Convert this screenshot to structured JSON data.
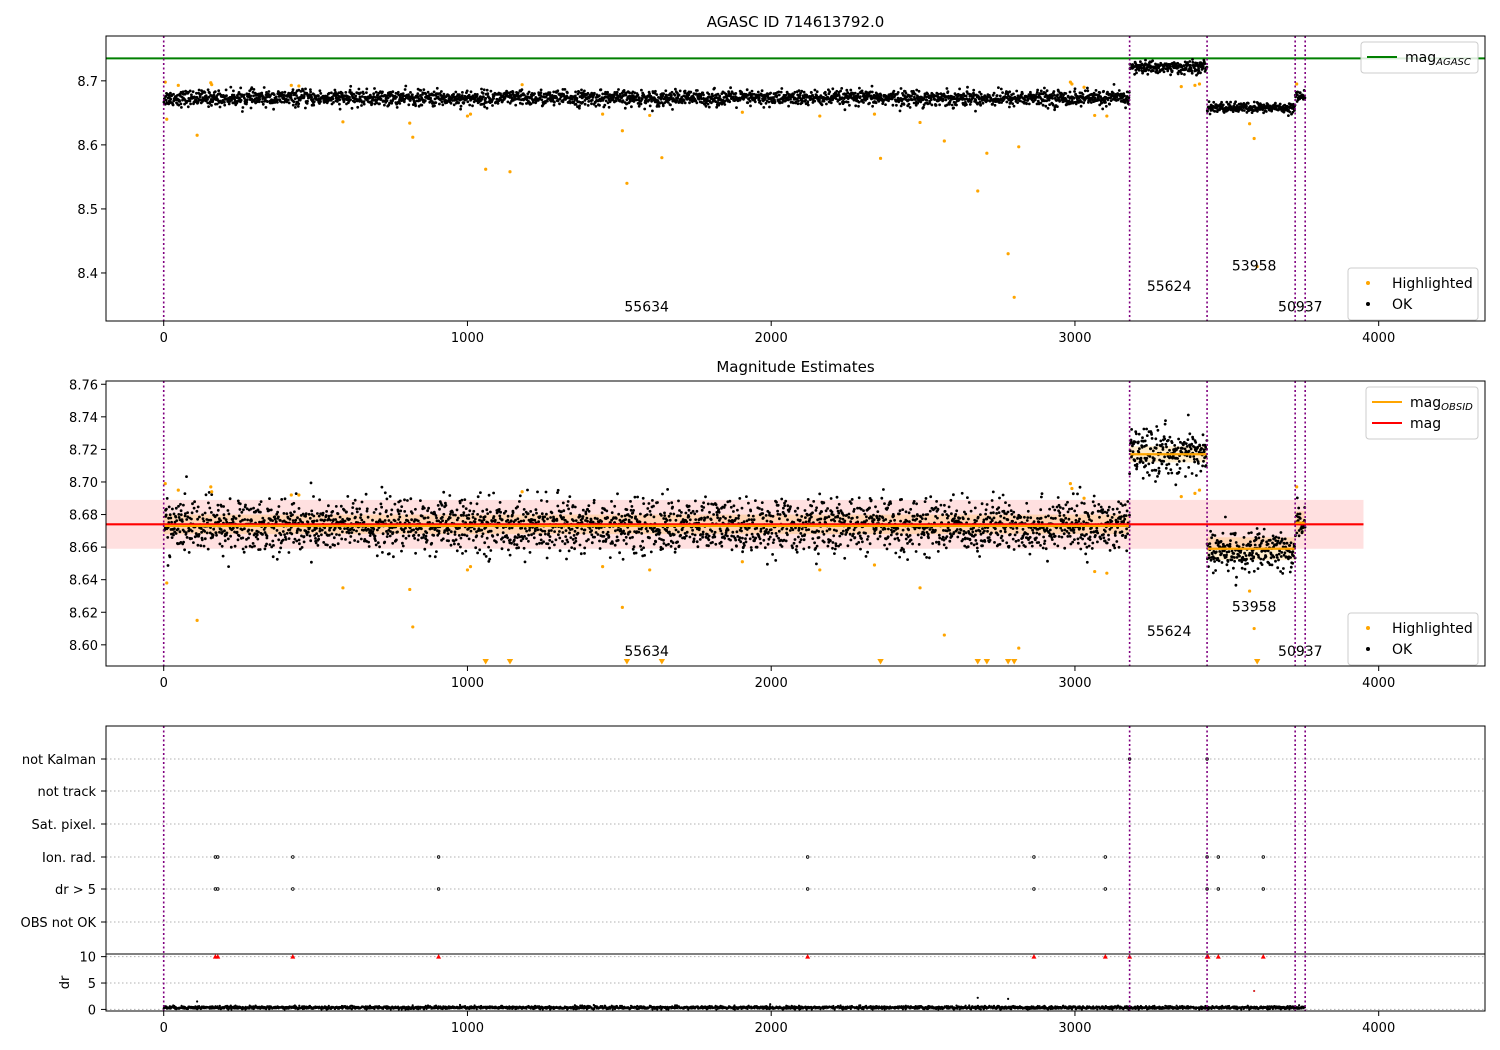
{
  "chart_data": [
    {
      "type": "scatter",
      "title": "AGASC ID 714613792.0",
      "xlim": [
        -190,
        4350
      ],
      "ylim": [
        8.325,
        8.77
      ],
      "x_ticks": [
        0,
        1000,
        2000,
        3000,
        4000
      ],
      "y_ticks": [
        8.4,
        8.5,
        8.6,
        8.7
      ],
      "grid": false,
      "obs_boundaries": [
        0,
        3180,
        3435,
        3725,
        3758
      ],
      "obs_labels": [
        {
          "text": "55634",
          "x": 1590,
          "y": 8.34
        },
        {
          "text": "55624",
          "x": 3310,
          "y": 8.372
        },
        {
          "text": "53958",
          "x": 3590,
          "y": 8.404
        },
        {
          "text": "50937",
          "x": 3742,
          "y": 8.34
        }
      ],
      "reference_lines": [
        {
          "name": "mag",
          "subscript": "AGASC",
          "value": 8.735,
          "x_range": [
            -190,
            4350
          ],
          "color": "#008000"
        }
      ],
      "ok_segments": [
        {
          "x_start": 0,
          "x_end": 3180,
          "center": 8.673,
          "spread": 0.006
        },
        {
          "x_start": 3180,
          "x_end": 3435,
          "center": 8.721,
          "spread": 0.005
        },
        {
          "x_start": 3435,
          "x_end": 3725,
          "center": 8.658,
          "spread": 0.004
        },
        {
          "x_start": 3725,
          "x_end": 3758,
          "center": 8.676,
          "spread": 0.004
        }
      ],
      "highlighted_points": [
        {
          "x": 5,
          "y": 8.698
        },
        {
          "x": 10,
          "y": 8.64
        },
        {
          "x": 48,
          "y": 8.693
        },
        {
          "x": 110,
          "y": 8.615
        },
        {
          "x": 155,
          "y": 8.697
        },
        {
          "x": 158,
          "y": 8.694
        },
        {
          "x": 420,
          "y": 8.693
        },
        {
          "x": 445,
          "y": 8.692
        },
        {
          "x": 590,
          "y": 8.636
        },
        {
          "x": 810,
          "y": 8.634
        },
        {
          "x": 820,
          "y": 8.612
        },
        {
          "x": 1000,
          "y": 8.645
        },
        {
          "x": 1010,
          "y": 8.648
        },
        {
          "x": 1060,
          "y": 8.562
        },
        {
          "x": 1140,
          "y": 8.558
        },
        {
          "x": 1180,
          "y": 8.694
        },
        {
          "x": 1445,
          "y": 8.648
        },
        {
          "x": 1510,
          "y": 8.622
        },
        {
          "x": 1525,
          "y": 8.54
        },
        {
          "x": 1600,
          "y": 8.646
        },
        {
          "x": 1640,
          "y": 8.58
        },
        {
          "x": 1905,
          "y": 8.651
        },
        {
          "x": 2160,
          "y": 8.645
        },
        {
          "x": 2340,
          "y": 8.648
        },
        {
          "x": 2360,
          "y": 8.579
        },
        {
          "x": 2490,
          "y": 8.635
        },
        {
          "x": 2570,
          "y": 8.606
        },
        {
          "x": 2680,
          "y": 8.528
        },
        {
          "x": 2710,
          "y": 8.587
        },
        {
          "x": 2780,
          "y": 8.43
        },
        {
          "x": 2800,
          "y": 8.362
        },
        {
          "x": 2815,
          "y": 8.597
        },
        {
          "x": 2985,
          "y": 8.698
        },
        {
          "x": 2990,
          "y": 8.695
        },
        {
          "x": 3030,
          "y": 8.69
        },
        {
          "x": 3065,
          "y": 8.646
        },
        {
          "x": 3105,
          "y": 8.645
        },
        {
          "x": 3350,
          "y": 8.691
        },
        {
          "x": 3395,
          "y": 8.693
        },
        {
          "x": 3410,
          "y": 8.695
        },
        {
          "x": 3575,
          "y": 8.633
        },
        {
          "x": 3590,
          "y": 8.61
        },
        {
          "x": 3600,
          "y": 8.41
        },
        {
          "x": 3730,
          "y": 8.695
        }
      ],
      "legends": [
        {
          "placement": "top-right",
          "entries": [
            {
              "label": "mag",
              "subscript": "AGASC",
              "kind": "line",
              "color": "#008000"
            }
          ]
        },
        {
          "placement": "bottom-right",
          "entries": [
            {
              "label": "Highlighted",
              "kind": "dot",
              "color": "#ffa500"
            },
            {
              "label": "OK",
              "kind": "dot",
              "color": "#000000"
            }
          ]
        }
      ]
    },
    {
      "type": "scatter",
      "title": "Magnitude Estimates",
      "xlim": [
        -190,
        4350
      ],
      "ylim": [
        8.587,
        8.762
      ],
      "x_ticks": [
        0,
        1000,
        2000,
        3000,
        4000
      ],
      "y_ticks": [
        8.6,
        8.62,
        8.64,
        8.66,
        8.68,
        8.7,
        8.72,
        8.74,
        8.76
      ],
      "grid": false,
      "obs_boundaries": [
        0,
        3180,
        3435,
        3725,
        3758
      ],
      "obs_labels": [
        {
          "text": "55634",
          "x": 1590,
          "y": 8.593
        },
        {
          "text": "55624",
          "x": 3310,
          "y": 8.6055
        },
        {
          "text": "53958",
          "x": 3590,
          "y": 8.6205
        },
        {
          "text": "50937",
          "x": 3742,
          "y": 8.593
        }
      ],
      "bands": [
        {
          "y_low": 8.659,
          "y_high": 8.689,
          "x_range": [
            -190,
            3950
          ],
          "color": "#ff0000",
          "opacity": 0.12
        },
        {
          "y_low": 8.668,
          "y_high": 8.68,
          "x_range": [
            0,
            3180
          ],
          "color": "#ffa500",
          "opacity": 0.2
        },
        {
          "y_low": 8.712,
          "y_high": 8.722,
          "x_range": [
            3180,
            3435
          ],
          "color": "#ffa500",
          "opacity": 0.2
        },
        {
          "y_low": 8.652,
          "y_high": 8.666,
          "x_range": [
            3435,
            3725
          ],
          "color": "#ffa500",
          "opacity": 0.2
        },
        {
          "y_low": 8.668,
          "y_high": 8.682,
          "x_range": [
            3725,
            3758
          ],
          "color": "#ffa500",
          "opacity": 0.2
        }
      ],
      "reference_lines": [
        {
          "name": "mag",
          "value": 8.674,
          "x_range": [
            -190,
            3950
          ],
          "color": "#ff0000"
        },
        {
          "name": "mag",
          "subscript": "OBSID",
          "value": 8.673,
          "x_range": [
            0,
            3180
          ],
          "color": "#ffa500"
        },
        {
          "name": "mag",
          "subscript": "OBSID",
          "value": 8.717,
          "x_range": [
            3180,
            3435
          ],
          "color": "#ffa500"
        },
        {
          "name": "mag",
          "subscript": "OBSID",
          "value": 8.659,
          "x_range": [
            3435,
            3725
          ],
          "color": "#ffa500"
        },
        {
          "name": "mag",
          "subscript": "OBSID",
          "value": 8.675,
          "x_range": [
            3725,
            3758
          ],
          "color": "#ffa500"
        }
      ],
      "ok_segments": [
        {
          "x_start": 0,
          "x_end": 3180,
          "center": 8.673,
          "spread": 0.008
        },
        {
          "x_start": 3180,
          "x_end": 3435,
          "center": 8.718,
          "spread": 0.007
        },
        {
          "x_start": 3435,
          "x_end": 3725,
          "center": 8.657,
          "spread": 0.006
        },
        {
          "x_start": 3725,
          "x_end": 3758,
          "center": 8.676,
          "spread": 0.006
        }
      ],
      "highlighted_points": [
        {
          "x": 5,
          "y": 8.699
        },
        {
          "x": 10,
          "y": 8.638
        },
        {
          "x": 48,
          "y": 8.695
        },
        {
          "x": 110,
          "y": 8.615
        },
        {
          "x": 155,
          "y": 8.697
        },
        {
          "x": 158,
          "y": 8.694
        },
        {
          "x": 420,
          "y": 8.692
        },
        {
          "x": 445,
          "y": 8.692
        },
        {
          "x": 590,
          "y": 8.635
        },
        {
          "x": 810,
          "y": 8.634
        },
        {
          "x": 820,
          "y": 8.611
        },
        {
          "x": 1000,
          "y": 8.646
        },
        {
          "x": 1010,
          "y": 8.648
        },
        {
          "x": 1180,
          "y": 8.694
        },
        {
          "x": 1445,
          "y": 8.648
        },
        {
          "x": 1510,
          "y": 8.623
        },
        {
          "x": 1600,
          "y": 8.646
        },
        {
          "x": 1905,
          "y": 8.651
        },
        {
          "x": 2160,
          "y": 8.646
        },
        {
          "x": 2340,
          "y": 8.649
        },
        {
          "x": 2490,
          "y": 8.635
        },
        {
          "x": 2570,
          "y": 8.606
        },
        {
          "x": 2815,
          "y": 8.598
        },
        {
          "x": 2985,
          "y": 8.699
        },
        {
          "x": 2990,
          "y": 8.696
        },
        {
          "x": 3030,
          "y": 8.69
        },
        {
          "x": 3065,
          "y": 8.645
        },
        {
          "x": 3105,
          "y": 8.644
        },
        {
          "x": 3350,
          "y": 8.691
        },
        {
          "x": 3395,
          "y": 8.693
        },
        {
          "x": 3410,
          "y": 8.695
        },
        {
          "x": 3575,
          "y": 8.633
        },
        {
          "x": 3590,
          "y": 8.61
        },
        {
          "x": 3730,
          "y": 8.697
        }
      ],
      "off_scale_markers": [
        1060,
        1140,
        1525,
        1640,
        2360,
        2680,
        2710,
        2780,
        2800,
        3600
      ],
      "legends": [
        {
          "placement": "top-right",
          "entries": [
            {
              "label": "mag",
              "subscript": "OBSID",
              "kind": "line",
              "color": "#ffa500"
            },
            {
              "label": "mag",
              "kind": "line",
              "color": "#ff0000"
            }
          ]
        },
        {
          "placement": "bottom-right",
          "entries": [
            {
              "label": "Highlighted",
              "kind": "dot",
              "color": "#ffa500"
            },
            {
              "label": "OK",
              "kind": "dot",
              "color": "#000000"
            }
          ]
        }
      ]
    },
    {
      "type": "scatter",
      "xlim": [
        -190,
        4350
      ],
      "x_ticks": [
        0,
        1000,
        2000,
        3000,
        4000
      ],
      "obs_boundaries": [
        0,
        3180,
        3435,
        3725,
        3758
      ],
      "flag_categories": [
        "not Kalman",
        "not track",
        "Sat. pixel.",
        "Ion. rad.",
        "dr > 5",
        "OBS not OK"
      ],
      "flag_points": [
        {
          "flag": "not Kalman",
          "x": [
            3180,
            3435
          ]
        },
        {
          "flag": "not track",
          "x": []
        },
        {
          "flag": "Sat. pixel.",
          "x": []
        },
        {
          "flag": "Ion. rad.",
          "x": [
            170,
            178,
            425,
            905,
            2120,
            2865,
            3100,
            3435,
            3472,
            3620
          ]
        },
        {
          "flag": "dr > 5",
          "x": [
            170,
            178,
            425,
            905,
            2120,
            2865,
            3100,
            3435,
            3472,
            3620
          ]
        },
        {
          "flag": "OBS not OK",
          "x": []
        }
      ],
      "dr_panel": {
        "ylabel": "dr",
        "ylim": [
          -0.3,
          10.5
        ],
        "y_ticks": [
          0,
          5,
          10
        ],
        "clipped_value": 10,
        "clipped_x": [
          170,
          178,
          425,
          905,
          2120,
          2865,
          3100,
          3180,
          3435,
          3438,
          3472,
          3620
        ],
        "outliers": [
          {
            "x": 110,
            "y": 1.5
          },
          {
            "x": 2680,
            "y": 2.2
          },
          {
            "x": 2780,
            "y": 2.0
          },
          {
            "x": 3590,
            "y": 3.5
          }
        ],
        "baseline": {
          "x_start": 0,
          "x_end": 3758,
          "center": 0.35,
          "spread": 0.25
        }
      }
    }
  ]
}
